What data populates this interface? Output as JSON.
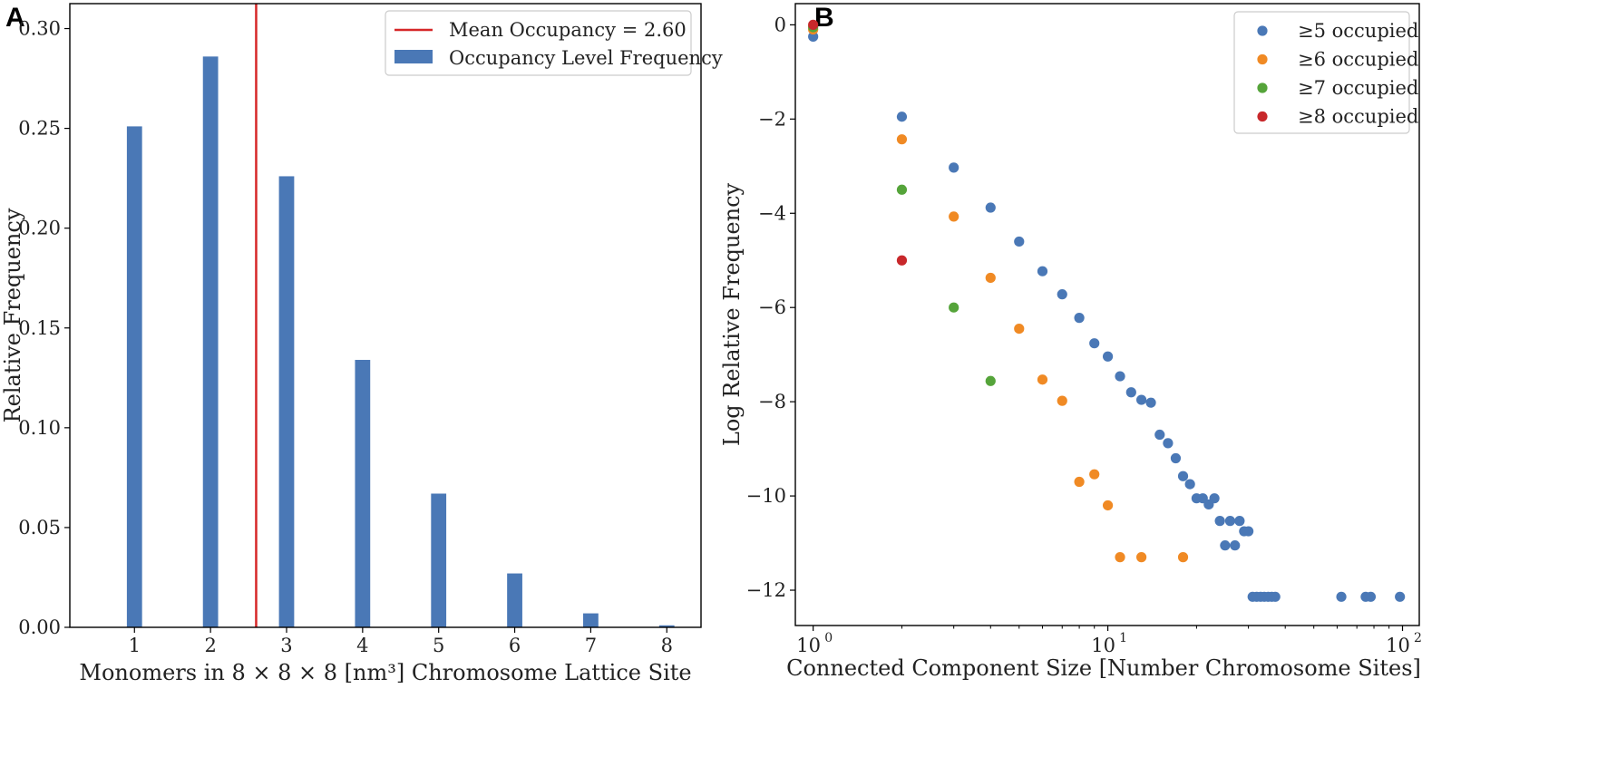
{
  "chart_data": [
    {
      "panel": "A",
      "type": "bar",
      "categories": [
        "1",
        "2",
        "3",
        "4",
        "5",
        "6",
        "7",
        "8"
      ],
      "x": [
        1,
        2,
        3,
        4,
        5,
        6,
        7,
        8
      ],
      "values": [
        0.251,
        0.286,
        0.226,
        0.134,
        0.067,
        0.027,
        0.007,
        0.001
      ],
      "xlabel": "Monomers in 8 × 8 × 8 [nm³] Chromosome Lattice Site",
      "ylabel": "Relative Frequency",
      "xlim": [
        0.15,
        8.45
      ],
      "ylim": [
        0,
        0.3125
      ],
      "yticks": [
        0.0,
        0.05,
        0.1,
        0.15,
        0.2,
        0.25,
        0.3
      ],
      "ytick_labels": [
        "0.00",
        "0.05",
        "0.10",
        "0.15",
        "0.20",
        "0.25",
        "0.30"
      ],
      "mean_line": {
        "value": 2.6,
        "label": "Mean Occupancy = 2.60",
        "color": "#d62728"
      },
      "bar_label": "Occupancy Level Frequency",
      "bar_color": "#4a78b6",
      "legend_position": "top-right"
    },
    {
      "panel": "B",
      "type": "scatter",
      "xscale": "log",
      "xlabel": "Connected Component Size [Number Chromosome Sites]",
      "ylabel": "Log Relative Frequency",
      "xlim": [
        0.87,
        114
      ],
      "ylim": [
        -12.75,
        0.45
      ],
      "yticks": [
        0,
        -2,
        -4,
        -6,
        -8,
        -10,
        -12
      ],
      "ytick_labels": [
        "0",
        "−2",
        "−4",
        "−6",
        "−8",
        "−10",
        "−12"
      ],
      "xticks": [
        1,
        10,
        100
      ],
      "xtick_labels": [
        "10",
        "10",
        "10"
      ],
      "xtick_exponents": [
        "0",
        "1",
        "2"
      ],
      "legend_position": "top-right",
      "series": [
        {
          "name": "≥5 occupied",
          "color": "#4a78b6",
          "x": [
            1,
            2,
            3,
            4,
            5,
            6,
            7,
            8,
            9,
            10,
            11,
            12,
            13,
            14,
            15,
            16,
            17,
            18,
            19,
            20,
            21,
            22,
            23,
            24,
            25,
            26,
            27,
            28,
            29,
            30,
            31,
            32,
            33,
            34,
            35,
            36,
            37,
            62,
            75,
            78,
            98
          ],
          "y": [
            -0.25,
            -1.95,
            -3.03,
            -3.88,
            -4.6,
            -5.23,
            -5.72,
            -6.22,
            -6.76,
            -7.04,
            -7.46,
            -7.8,
            -7.96,
            -8.02,
            -8.7,
            -8.88,
            -9.2,
            -9.58,
            -9.75,
            -10.05,
            -10.05,
            -10.18,
            -10.05,
            -10.53,
            -11.05,
            -10.53,
            -11.05,
            -10.53,
            -10.75,
            -10.75,
            -12.14,
            -12.14,
            -12.14,
            -12.14,
            -12.14,
            -12.14,
            -12.14,
            -12.14,
            -12.14,
            -12.14,
            -12.14
          ]
        },
        {
          "name": "≥6 occupied",
          "color": "#f08a24",
          "x": [
            1,
            2,
            3,
            4,
            5,
            6,
            7,
            8,
            9,
            10,
            11,
            13,
            18
          ],
          "y": [
            -0.1,
            -2.43,
            -4.07,
            -5.37,
            -6.45,
            -7.53,
            -7.98,
            -9.7,
            -9.54,
            -10.2,
            -11.3,
            -11.3,
            -11.3
          ]
        },
        {
          "name": "≥7 occupied",
          "color": "#55a43a",
          "x": [
            1,
            2,
            3,
            4
          ],
          "y": [
            -0.05,
            -3.5,
            -6.0,
            -7.56
          ]
        },
        {
          "name": "≥8 occupied",
          "color": "#c8282b",
          "x": [
            1,
            2
          ],
          "y": [
            0.0,
            -5.0
          ]
        }
      ]
    }
  ]
}
